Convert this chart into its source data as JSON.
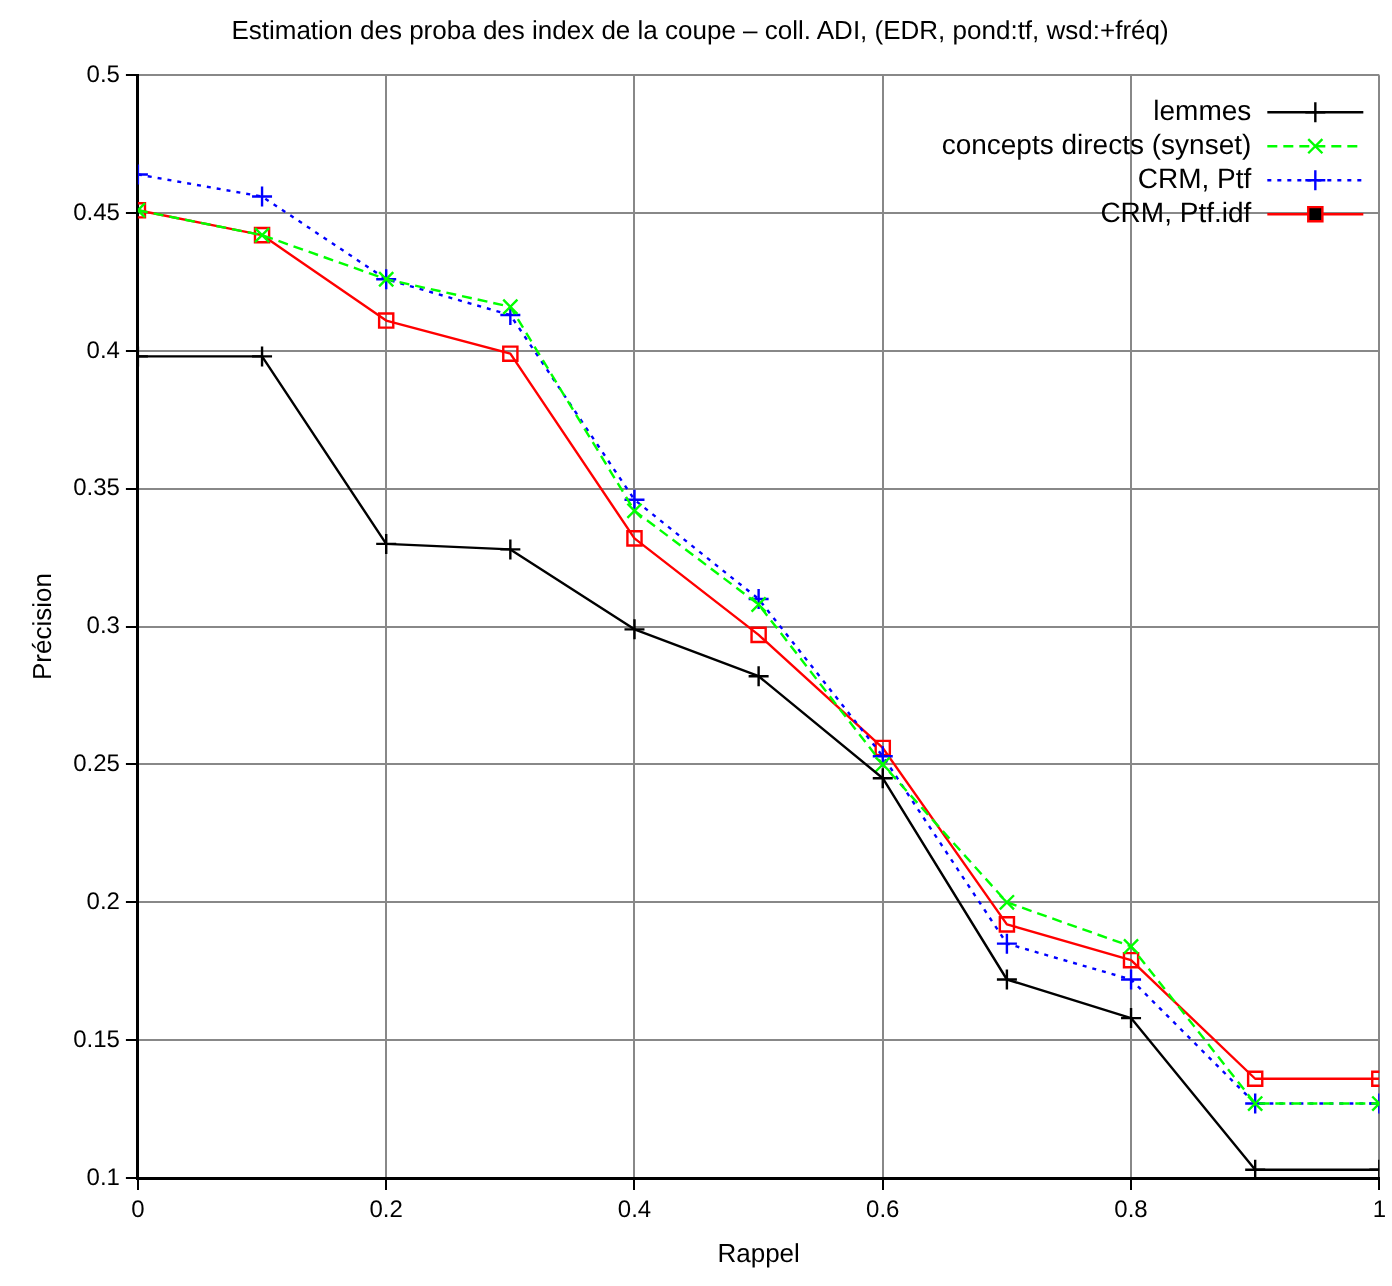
{
  "chart_data": {
    "type": "line",
    "title": "Estimation des proba des index de la coupe – coll. ADI, (EDR, pond:tf, wsd:+fréq)",
    "xlabel": "Rappel",
    "ylabel": "Précision",
    "x": [
      0,
      0.1,
      0.2,
      0.3,
      0.4,
      0.5,
      0.6,
      0.7,
      0.8,
      0.9,
      1
    ],
    "series": [
      {
        "name": "lemmes",
        "color": "#000000",
        "marker": "cross",
        "line_style": "solid",
        "values": [
          0.398,
          0.398,
          0.33,
          0.328,
          0.299,
          0.282,
          0.245,
          0.172,
          0.158,
          0.103,
          0.103
        ]
      },
      {
        "name": "concepts directs (synset)",
        "color": "#00ff00",
        "marker": "x",
        "line_style": "dashed",
        "values": [
          0.451,
          0.442,
          0.426,
          0.416,
          0.342,
          0.308,
          0.25,
          0.2,
          0.184,
          0.127,
          0.127
        ]
      },
      {
        "name": "CRM, Ptf",
        "color": "#0000ff",
        "marker": "cross",
        "line_style": "dotted",
        "values": [
          0.464,
          0.456,
          0.426,
          0.413,
          0.346,
          0.31,
          0.253,
          0.185,
          0.172,
          0.127,
          0.127
        ]
      },
      {
        "name": "CRM, Ptf.idf",
        "color": "#ff0000",
        "marker": "square",
        "line_style": "solid",
        "values": [
          0.451,
          0.442,
          0.411,
          0.399,
          0.332,
          0.297,
          0.256,
          0.192,
          0.179,
          0.136,
          0.136
        ]
      }
    ],
    "xlim": [
      0,
      1
    ],
    "xticks": [
      0,
      0.2,
      0.4,
      0.6,
      0.8,
      1
    ],
    "ylim": [
      0.1,
      0.5
    ],
    "yticks": [
      0.1,
      0.15,
      0.2,
      0.25,
      0.3,
      0.35,
      0.4,
      0.45,
      0.5
    ],
    "grid": true,
    "legend": "top right"
  }
}
